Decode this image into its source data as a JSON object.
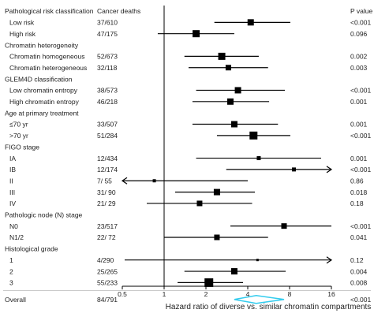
{
  "chart_data": {
    "type": "forest",
    "xlabel": "Hazard ratio of diverse vs. similar chromatin compartments",
    "x_scale": "log2",
    "xlim": [
      0.5,
      16
    ],
    "x_ticks": [
      0.5,
      1,
      2,
      4,
      8,
      16
    ],
    "x_tick_labels": [
      "0.5",
      "1",
      "2",
      "4",
      "8",
      "16"
    ],
    "reference_line": 1,
    "column_headers": {
      "label": "Pathological risk classification",
      "deaths": "Cancer deaths",
      "p": "P value"
    },
    "rows": [
      {
        "kind": "group",
        "label": "Pathological risk classification"
      },
      {
        "kind": "item",
        "label": "Low risk",
        "deaths": "37/610",
        "hr": 4.2,
        "ci": [
          2.3,
          8.1
        ],
        "p": "<0.001",
        "box": 8
      },
      {
        "kind": "item",
        "label": "High risk",
        "deaths": "47/175",
        "hr": 1.7,
        "ci": [
          0.9,
          3.2
        ],
        "p": "0.096",
        "box": 9
      },
      {
        "kind": "group",
        "label": "Chromatin heterogeneity"
      },
      {
        "kind": "item",
        "label": "Chromatin homogeneous",
        "deaths": "52/673",
        "hr": 2.6,
        "ci": [
          1.4,
          4.8
        ],
        "p": "0.002",
        "box": 9
      },
      {
        "kind": "item",
        "label": "Chromatin heterogeneous",
        "deaths": "32/118",
        "hr": 2.9,
        "ci": [
          1.5,
          5.6
        ],
        "p": "0.003",
        "box": 7
      },
      {
        "kind": "group",
        "label": "GLEM4D classification"
      },
      {
        "kind": "item",
        "label": "Low chromatin entropy",
        "deaths": "38/573",
        "hr": 3.4,
        "ci": [
          1.7,
          7.4
        ],
        "p": "<0.001",
        "box": 8
      },
      {
        "kind": "item",
        "label": "High chromatin entropy",
        "deaths": "46/218",
        "hr": 3.0,
        "ci": [
          1.6,
          5.7
        ],
        "p": "0.001",
        "box": 8
      },
      {
        "kind": "group",
        "label": "Age at primary treatment"
      },
      {
        "kind": "item",
        "label": "≤70 yr",
        "deaths": "33/507",
        "hr": 3.2,
        "ci": [
          1.6,
          6.6
        ],
        "p": "0.001",
        "box": 8
      },
      {
        "kind": "item",
        "label": ">70 yr",
        "deaths": "51/284",
        "hr": 4.4,
        "ci": [
          2.4,
          8.1
        ],
        "p": "<0.001",
        "box": 10
      },
      {
        "kind": "group",
        "label": "FIGO stage"
      },
      {
        "kind": "item",
        "label": "IA",
        "deaths": "12/434",
        "hr": 4.8,
        "ci": [
          1.7,
          13.5
        ],
        "p": "0.001",
        "box": 5
      },
      {
        "kind": "item",
        "label": "IB",
        "deaths": "12/174",
        "hr": 8.6,
        "ci": [
          2.8,
          16
        ],
        "p": "<0.001",
        "box": 5,
        "arrow_right": true
      },
      {
        "kind": "item",
        "label": "II",
        "deaths": "7/ 55",
        "hr": 0.85,
        "ci": [
          0.5,
          4.0
        ],
        "p": "0.86",
        "box": 4,
        "arrow_left": true
      },
      {
        "kind": "item",
        "label": "III",
        "deaths": "31/ 90",
        "hr": 2.4,
        "ci": [
          1.2,
          4.5
        ],
        "p": "0.018",
        "box": 8
      },
      {
        "kind": "item",
        "label": "IV",
        "deaths": "21/ 29",
        "hr": 1.8,
        "ci": [
          0.75,
          4.3
        ],
        "p": "0.18",
        "box": 7
      },
      {
        "kind": "group",
        "label": "Pathologic node (N) stage"
      },
      {
        "kind": "item",
        "label": "N0",
        "deaths": "23/517",
        "hr": 7.3,
        "ci": [
          3.0,
          16
        ],
        "p": "<0.001",
        "box": 7
      },
      {
        "kind": "item",
        "label": "N1/2",
        "deaths": "22/ 72",
        "hr": 2.4,
        "ci": [
          1.0,
          5.6
        ],
        "p": "0.041",
        "box": 7
      },
      {
        "kind": "group",
        "label": "Histological grade"
      },
      {
        "kind": "item",
        "label": "1",
        "deaths": "4/290",
        "hr": 4.7,
        "ci": [
          0.52,
          16
        ],
        "p": "0.12",
        "box": 3,
        "arrow_right": true
      },
      {
        "kind": "item",
        "label": "2",
        "deaths": "25/265",
        "hr": 3.2,
        "ci": [
          1.4,
          7.5
        ],
        "p": "0.004",
        "box": 8
      },
      {
        "kind": "item",
        "label": "3",
        "deaths": "55/233",
        "hr": 2.1,
        "ci": [
          1.25,
          3.7
        ],
        "p": "0.008",
        "box": 11
      },
      {
        "kind": "overall",
        "label": "Overall",
        "deaths": "84/791",
        "hr": 4.6,
        "ci": [
          3.2,
          7.3
        ],
        "p": "<0.001"
      }
    ]
  },
  "colors": {
    "text": "#222222",
    "lines": "#000000",
    "overall_diamond": "#33ccee",
    "separator": "#aaaaaa"
  }
}
